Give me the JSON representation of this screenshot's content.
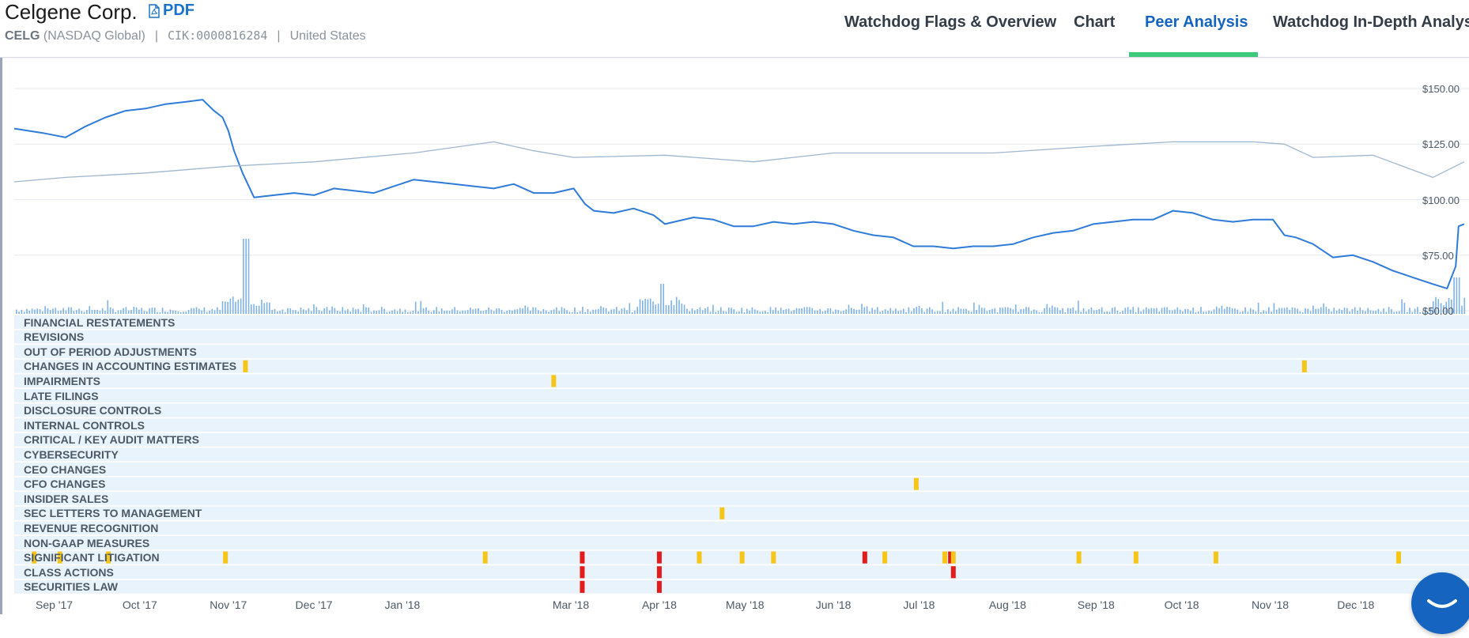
{
  "header": {
    "company": "Celgene Corp.",
    "pdf_label": "PDF",
    "ticker": "CELG",
    "exchange": "(NASDAQ Global)",
    "cik": "CIK:0000816284",
    "country": "United States",
    "separator": "|"
  },
  "tabs": [
    {
      "label": "Watchdog Flags & Overview",
      "active": false
    },
    {
      "label": "Chart",
      "active": false
    },
    {
      "label": "Peer Analysis",
      "active": true
    },
    {
      "label": "Watchdog In-Depth Analysis",
      "active": false
    }
  ],
  "colors": {
    "accent": "#1565c0",
    "tab_underline": "#3cc97a",
    "price_line": "#2f7bd8",
    "peer_line": "#9fb6cf",
    "volume": "#7fb2e5",
    "flag_yellow": "#f5c518",
    "flag_red": "#e41b1b",
    "row_band": "#e9f3fc"
  },
  "chart_data": {
    "type": "line",
    "x_tick_labels": [
      "Sep '17",
      "Oct '17",
      "Nov '17",
      "Dec '17",
      "Jan '18",
      "Mar '18",
      "Apr '18",
      "May '18",
      "Jun '18",
      "Jul '18",
      "Aug '18",
      "Sep '18",
      "Oct '18",
      "Nov '18",
      "Dec '18"
    ],
    "y_tick_labels": [
      "$150.00",
      "$125.00",
      "$100.00",
      "$75.00",
      "$50.00"
    ],
    "ylim": [
      50,
      150
    ],
    "x_range": [
      "2017-08-18",
      "2019-01-08"
    ],
    "grid": true,
    "series": [
      {
        "key": "price",
        "points": [
          [
            "2017-08-18",
            132
          ],
          [
            "2017-08-28",
            130
          ],
          [
            "2017-09-05",
            128
          ],
          [
            "2017-09-12",
            133
          ],
          [
            "2017-09-19",
            137
          ],
          [
            "2017-09-26",
            140
          ],
          [
            "2017-10-03",
            141
          ],
          [
            "2017-10-10",
            143
          ],
          [
            "2017-10-17",
            144
          ],
          [
            "2017-10-23",
            145
          ],
          [
            "2017-10-27",
            140
          ],
          [
            "2017-10-30",
            137
          ],
          [
            "2017-11-01",
            131
          ],
          [
            "2017-11-03",
            122
          ],
          [
            "2017-11-06",
            112
          ],
          [
            "2017-11-10",
            101
          ],
          [
            "2017-11-17",
            102
          ],
          [
            "2017-11-24",
            103
          ],
          [
            "2017-12-01",
            102
          ],
          [
            "2017-12-08",
            105
          ],
          [
            "2017-12-15",
            104
          ],
          [
            "2017-12-22",
            103
          ],
          [
            "2017-12-29",
            106
          ],
          [
            "2018-01-05",
            109
          ],
          [
            "2018-01-12",
            108
          ],
          [
            "2018-01-19",
            107
          ],
          [
            "2018-01-26",
            106
          ],
          [
            "2018-02-02",
            105
          ],
          [
            "2018-02-09",
            107
          ],
          [
            "2018-02-16",
            103
          ],
          [
            "2018-02-23",
            103
          ],
          [
            "2018-03-02",
            105
          ],
          [
            "2018-03-06",
            98
          ],
          [
            "2018-03-09",
            95
          ],
          [
            "2018-03-16",
            94
          ],
          [
            "2018-03-23",
            96
          ],
          [
            "2018-03-30",
            93
          ],
          [
            "2018-04-03",
            89
          ],
          [
            "2018-04-13",
            92
          ],
          [
            "2018-04-20",
            91
          ],
          [
            "2018-04-27",
            88
          ],
          [
            "2018-05-04",
            88
          ],
          [
            "2018-05-11",
            90
          ],
          [
            "2018-05-18",
            89
          ],
          [
            "2018-05-25",
            90
          ],
          [
            "2018-06-01",
            89
          ],
          [
            "2018-06-08",
            86
          ],
          [
            "2018-06-15",
            84
          ],
          [
            "2018-06-22",
            83
          ],
          [
            "2018-06-29",
            79
          ],
          [
            "2018-07-06",
            79
          ],
          [
            "2018-07-13",
            78
          ],
          [
            "2018-07-20",
            79
          ],
          [
            "2018-07-27",
            79
          ],
          [
            "2018-08-03",
            80
          ],
          [
            "2018-08-10",
            83
          ],
          [
            "2018-08-17",
            85
          ],
          [
            "2018-08-24",
            86
          ],
          [
            "2018-08-31",
            89
          ],
          [
            "2018-09-07",
            90
          ],
          [
            "2018-09-14",
            91
          ],
          [
            "2018-09-21",
            91
          ],
          [
            "2018-09-28",
            95
          ],
          [
            "2018-10-05",
            94
          ],
          [
            "2018-10-12",
            91
          ],
          [
            "2018-10-19",
            90
          ],
          [
            "2018-10-26",
            91
          ],
          [
            "2018-11-02",
            91
          ],
          [
            "2018-11-06",
            84
          ],
          [
            "2018-11-10",
            83
          ],
          [
            "2018-11-16",
            80
          ],
          [
            "2018-11-23",
            74
          ],
          [
            "2018-11-30",
            75
          ],
          [
            "2018-12-07",
            72
          ],
          [
            "2018-12-14",
            68
          ],
          [
            "2018-12-21",
            65
          ],
          [
            "2018-12-28",
            62
          ],
          [
            "2019-01-02",
            60
          ],
          [
            "2019-01-05",
            70
          ],
          [
            "2019-01-06",
            88
          ],
          [
            "2019-01-08",
            89
          ]
        ]
      },
      {
        "key": "peer",
        "points": [
          [
            "2017-08-18",
            108
          ],
          [
            "2017-09-05",
            110
          ],
          [
            "2017-10-03",
            112
          ],
          [
            "2017-11-01",
            115
          ],
          [
            "2017-12-01",
            117
          ],
          [
            "2018-01-05",
            121
          ],
          [
            "2018-02-02",
            126
          ],
          [
            "2018-02-16",
            122
          ],
          [
            "2018-03-02",
            119
          ],
          [
            "2018-04-03",
            120
          ],
          [
            "2018-05-04",
            117
          ],
          [
            "2018-06-01",
            121
          ],
          [
            "2018-06-29",
            121
          ],
          [
            "2018-07-27",
            121
          ],
          [
            "2018-08-31",
            124
          ],
          [
            "2018-09-28",
            126
          ],
          [
            "2018-10-26",
            126
          ],
          [
            "2018-11-06",
            125
          ],
          [
            "2018-11-16",
            119
          ],
          [
            "2018-12-07",
            120
          ],
          [
            "2018-12-28",
            110
          ],
          [
            "2019-01-08",
            117
          ]
        ]
      }
    ],
    "volume_spikes_dates": [
      "2017-11-07",
      "2018-04-02",
      "2019-01-05"
    ]
  },
  "flags": {
    "rows": [
      {
        "label": "FINANCIAL RESTATEMENTS",
        "marks": []
      },
      {
        "label": "REVISIONS",
        "marks": []
      },
      {
        "label": "OUT OF PERIOD ADJUSTMENTS",
        "marks": []
      },
      {
        "label": "CHANGES IN ACCOUNTING ESTIMATES",
        "marks": [
          {
            "date": "2017-11-07",
            "severity": "yellow"
          },
          {
            "date": "2018-11-13",
            "severity": "yellow"
          }
        ]
      },
      {
        "label": "IMPAIRMENTS",
        "marks": [
          {
            "date": "2018-02-23",
            "severity": "yellow"
          }
        ]
      },
      {
        "label": "LATE FILINGS",
        "marks": []
      },
      {
        "label": "DISCLOSURE CONTROLS",
        "marks": []
      },
      {
        "label": "INTERNAL CONTROLS",
        "marks": []
      },
      {
        "label": "CRITICAL / KEY AUDIT MATTERS",
        "marks": []
      },
      {
        "label": "CYBERSECURITY",
        "marks": []
      },
      {
        "label": "CEO CHANGES",
        "marks": []
      },
      {
        "label": "CFO CHANGES",
        "marks": [
          {
            "date": "2018-06-30",
            "severity": "yellow"
          }
        ]
      },
      {
        "label": "INSIDER SALES",
        "marks": []
      },
      {
        "label": "SEC LETTERS TO MANAGEMENT",
        "marks": [
          {
            "date": "2018-04-23",
            "severity": "yellow"
          }
        ]
      },
      {
        "label": "REVENUE RECOGNITION",
        "marks": []
      },
      {
        "label": "NON-GAAP MEASURES",
        "marks": []
      },
      {
        "label": "SIGNIFICANT LITIGATION",
        "marks": [
          {
            "date": "2017-08-25",
            "severity": "yellow"
          },
          {
            "date": "2017-09-03",
            "severity": "yellow"
          },
          {
            "date": "2017-09-20",
            "severity": "yellow"
          },
          {
            "date": "2017-10-31",
            "severity": "yellow"
          },
          {
            "date": "2018-01-30",
            "severity": "yellow"
          },
          {
            "date": "2018-03-05",
            "severity": "red"
          },
          {
            "date": "2018-04-01",
            "severity": "red"
          },
          {
            "date": "2018-04-15",
            "severity": "yellow"
          },
          {
            "date": "2018-04-30",
            "severity": "yellow"
          },
          {
            "date": "2018-05-11",
            "severity": "yellow"
          },
          {
            "date": "2018-06-12",
            "severity": "red"
          },
          {
            "date": "2018-06-19",
            "severity": "yellow"
          },
          {
            "date": "2018-07-10",
            "severity": "yellow"
          },
          {
            "date": "2018-07-12",
            "severity": "red"
          },
          {
            "date": "2018-07-13",
            "severity": "yellow"
          },
          {
            "date": "2018-08-26",
            "severity": "yellow"
          },
          {
            "date": "2018-09-15",
            "severity": "yellow"
          },
          {
            "date": "2018-10-13",
            "severity": "yellow"
          },
          {
            "date": "2018-12-16",
            "severity": "yellow"
          }
        ]
      },
      {
        "label": "CLASS ACTIONS",
        "marks": [
          {
            "date": "2018-03-05",
            "severity": "red"
          },
          {
            "date": "2018-04-01",
            "severity": "red"
          },
          {
            "date": "2018-07-13",
            "severity": "red"
          }
        ]
      },
      {
        "label": "SECURITIES LAW",
        "marks": [
          {
            "date": "2018-03-05",
            "severity": "red"
          },
          {
            "date": "2018-04-01",
            "severity": "red"
          }
        ]
      }
    ]
  }
}
